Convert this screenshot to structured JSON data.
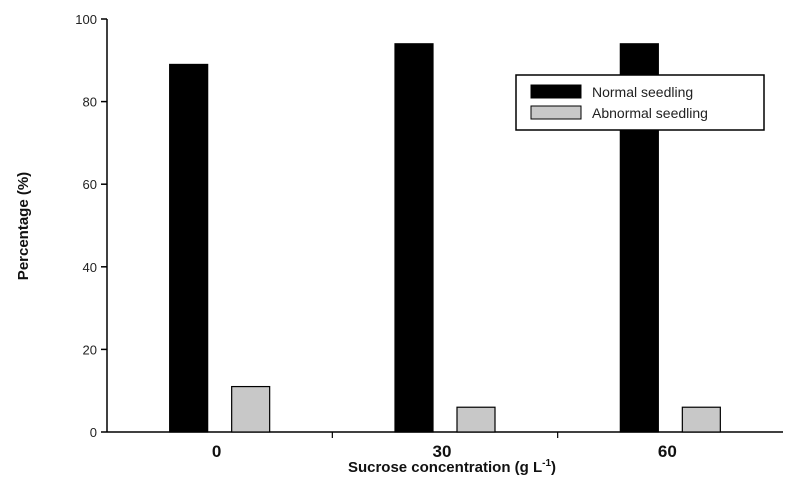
{
  "chart_data": {
    "type": "bar",
    "title": "",
    "categories": [
      "0",
      "30",
      "60"
    ],
    "series": [
      {
        "name": "Normal seedling",
        "values": [
          89,
          94,
          94
        ],
        "color": "#000000"
      },
      {
        "name": "Abnormal seedling",
        "values": [
          11,
          6,
          6
        ],
        "color": "#c8c8c8"
      }
    ],
    "xlabel_main": "Sucrose concentration (g L",
    "xlabel_sup": "-1",
    "xlabel_tail": ")",
    "ylabel": "Percentage (%)",
    "ylim": [
      0,
      100
    ],
    "yticks": [
      "0",
      "20",
      "40",
      "60",
      "80",
      "100"
    ],
    "legend_position": "top-right",
    "grid": false
  }
}
